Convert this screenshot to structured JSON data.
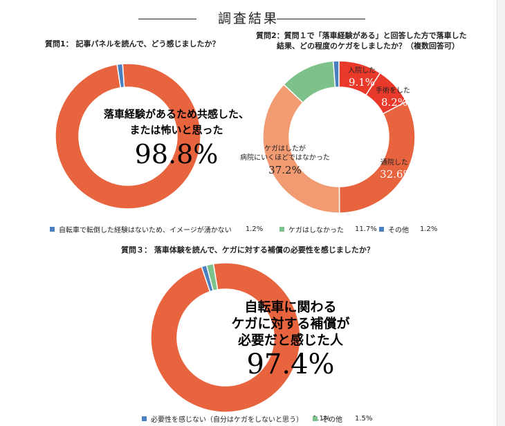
{
  "header": {
    "title": "調査結果"
  },
  "colors": {
    "red": "#e8643f",
    "blue": "#4a7fc1",
    "green": "#7ec28b",
    "crimson": "#e8392b",
    "salmon": "#f29a72"
  },
  "chart_data": [
    {
      "type": "pie",
      "title": "質問1： 記事パネルを読んで、どう感じましたか？",
      "donut": true,
      "slices": [
        {
          "label": "落車経験があるため共感した、または怖いと思った",
          "value": 98.8,
          "color": "#e8643f"
        },
        {
          "label": "自転車で転倒した経験はないため、イメージが湧かない",
          "value": 1.2,
          "color": "#4a7fc1"
        }
      ],
      "annotation": {
        "line1": "落車経験があるため共感した、",
        "line2": "または怖いと思った",
        "value_text": "98.8%"
      },
      "legend": [
        {
          "label": "自転車で転倒した経験はないため、イメージが湧かない",
          "value_text": "1.2%",
          "color": "#4a7fc1"
        }
      ]
    },
    {
      "type": "pie",
      "title_line1": "質問2：質問１で「落車経験がある」と回答した方で落車した",
      "title_line2": "結果、どの程度のケガをしましたか？（複数回答可）",
      "donut": true,
      "slices": [
        {
          "label": "入院した",
          "value": 9.1,
          "color": "#e8392b",
          "value_text": "9.1%"
        },
        {
          "label": "手術をした",
          "value": 8.2,
          "color": "#e8392b",
          "value_text": "8.2%"
        },
        {
          "label": "通院した",
          "value": 32.6,
          "color": "#e8643f",
          "value_text": "32.6%"
        },
        {
          "label_line1": "ケガはしたが",
          "label_line2": "病院にいくほどではなかった",
          "value": 37.2,
          "color": "#f29a72",
          "value_text": "37.2%"
        },
        {
          "label": "ケガはしなかった",
          "value": 11.7,
          "color": "#7ec28b"
        },
        {
          "label": "その他",
          "value": 1.2,
          "color": "#4a7fc1"
        }
      ],
      "legend": [
        {
          "label": "ケガはしなかった",
          "value_text": "11.7%",
          "color": "#7ec28b"
        },
        {
          "label": "その他",
          "value_text": "1.2%",
          "color": "#4a7fc1"
        }
      ]
    },
    {
      "type": "pie",
      "title": "質問３： 落車体験を読んで、ケガに対する補償の必要性を感じましたか？",
      "donut": true,
      "slices": [
        {
          "label": "自転車に関わるケガに対する補償が必要だと感じた人",
          "value": 97.4,
          "color": "#e8643f"
        },
        {
          "label": "必要性を感じない（自分はケガをしないと思う）",
          "value": 1.1,
          "color": "#4a7fc1"
        },
        {
          "label": "その他",
          "value": 1.5,
          "color": "#7ec28b"
        }
      ],
      "annotation": {
        "line1": "自転車に関わる",
        "line2": "ケガに対する補償が",
        "line3": "必要だと感じた人",
        "value_text": "97.4%"
      },
      "legend": [
        {
          "label": "必要性を感じない（自分はケガをしないと思う）",
          "value_text": "1.1%",
          "color": "#4a7fc1"
        },
        {
          "label": "その他",
          "value_text": "1.5%",
          "color": "#7ec28b"
        }
      ]
    }
  ]
}
